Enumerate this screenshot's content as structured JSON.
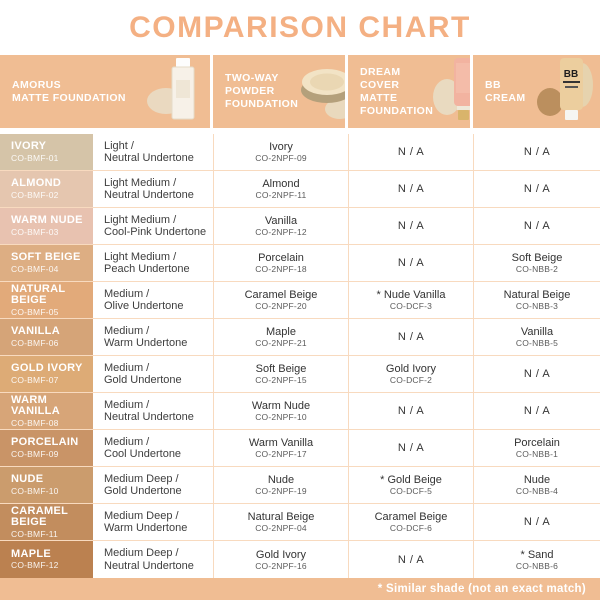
{
  "title": "COMPARISON CHART",
  "colors": {
    "accent": "#f4b083",
    "band": "#f0bd93",
    "grid_line": "#f8dabf",
    "dark_text": "#3e3e3e",
    "footnote_text": "#ffffff"
  },
  "chart_data": {
    "type": "table",
    "title": "COMPARISON CHART",
    "na_label": "N / A",
    "footnote": "* Similar shade (not an exact match)",
    "header_columns": [
      {
        "lines": [
          "AMORUS",
          "MATTE FOUNDATION"
        ],
        "icon": "foundation-bottle-icon"
      },
      {
        "lines": [
          "TWO-WAY",
          "POWDER",
          "FOUNDATION"
        ],
        "icon": "powder-compact-icon"
      },
      {
        "lines": [
          "DREAM COVER",
          "MATTE",
          "FOUNDATION"
        ],
        "icon": "cream-tube-icon"
      },
      {
        "lines": [
          "BB CREAM"
        ],
        "icon": "bb-cream-tube-icon"
      }
    ],
    "rows": [
      {
        "shade": "IVORY",
        "shade_code": "CO-BMF-01",
        "swatch_color": "#d5c4a8",
        "undertone": [
          "Light /",
          "Neutral Undertone"
        ],
        "two_way": {
          "name": "Ivory",
          "code": "CO-2NPF-09"
        },
        "dream_cover": "N / A",
        "bb_cream": "N / A"
      },
      {
        "shade": "ALMOND",
        "shade_code": "CO-BMF-02",
        "swatch_color": "#e5c6af",
        "undertone": [
          "Light Medium /",
          "Neutral Undertone"
        ],
        "two_way": {
          "name": "Almond",
          "code": "CO-2NPF-11"
        },
        "dream_cover": "N / A",
        "bb_cream": "N / A"
      },
      {
        "shade": "WARM NUDE",
        "shade_code": "CO-BMF-03",
        "swatch_color": "#e8c2b0",
        "undertone": [
          "Light Medium /",
          "Cool-Pink Undertone"
        ],
        "two_way": {
          "name": "Vanilla",
          "code": "CO-2NPF-12"
        },
        "dream_cover": "N / A",
        "bb_cream": "N / A"
      },
      {
        "shade": "SOFT BEIGE",
        "shade_code": "CO-BMF-04",
        "swatch_color": "#ddae83",
        "undertone": [
          "Light Medium /",
          "Peach Undertone"
        ],
        "two_way": {
          "name": "Porcelain",
          "code": "CO-2NPF-18"
        },
        "dream_cover": "N / A",
        "bb_cream": {
          "name": "Soft Beige",
          "code": "CO-NBB-2"
        }
      },
      {
        "shade": "NATURAL BEIGE",
        "shade_code": "CO-BMF-05",
        "swatch_color": "#e2aa7a",
        "undertone": [
          "Medium /",
          "Olive Undertone"
        ],
        "two_way": {
          "name": "Caramel Beige",
          "code": "CO-2NPF-20"
        },
        "dream_cover": {
          "name": "* Nude Vanilla",
          "code": "CO-DCF-3"
        },
        "bb_cream": {
          "name": "Natural Beige",
          "code": "CO-NBB-3"
        }
      },
      {
        "shade": "VANILLA",
        "shade_code": "CO-BMF-06",
        "swatch_color": "#d5a478",
        "undertone": [
          "Medium /",
          "Warm Undertone"
        ],
        "two_way": {
          "name": "Maple",
          "code": "CO-2NPF-21"
        },
        "dream_cover": "N / A",
        "bb_cream": {
          "name": "Vanilla",
          "code": "CO-NBB-5"
        }
      },
      {
        "shade": "GOLD IVORY",
        "shade_code": "CO-BMF-07",
        "swatch_color": "#ddab76",
        "undertone": [
          "Medium /",
          "Gold Undertone"
        ],
        "two_way": {
          "name": "Soft Beige",
          "code": "CO-2NPF-15"
        },
        "dream_cover": {
          "name": "Gold Ivory",
          "code": "CO-DCF-2"
        },
        "bb_cream": "N / A"
      },
      {
        "shade": "WARM VANILLA",
        "shade_code": "CO-BMF-08",
        "swatch_color": "#d7a578",
        "undertone": [
          "Medium /",
          "Neutral Undertone"
        ],
        "two_way": {
          "name": "Warm Nude",
          "code": "CO-2NPF-10"
        },
        "dream_cover": "N / A",
        "bb_cream": "N / A"
      },
      {
        "shade": "PORCELAIN",
        "shade_code": "CO-BMF-09",
        "swatch_color": "#c99467",
        "undertone": [
          "Medium /",
          "Cool Undertone"
        ],
        "two_way": {
          "name": "Warm Vanilla",
          "code": "CO-2NPF-17"
        },
        "dream_cover": "N / A",
        "bb_cream": {
          "name": "Porcelain",
          "code": "CO-NBB-1"
        }
      },
      {
        "shade": "NUDE",
        "shade_code": "CO-BMF-10",
        "swatch_color": "#cb9c6d",
        "undertone": [
          "Medium Deep /",
          "Gold Undertone"
        ],
        "two_way": {
          "name": "Nude",
          "code": "CO-2NPF-19"
        },
        "dream_cover": {
          "name": "* Gold Beige",
          "code": "CO-DCF-5"
        },
        "bb_cream": {
          "name": "Nude",
          "code": "CO-NBB-4"
        }
      },
      {
        "shade": "CARAMEL BEIGE",
        "shade_code": "CO-BMF-11",
        "swatch_color": "#c28d5e",
        "undertone": [
          "Medium Deep /",
          "Warm Undertone"
        ],
        "two_way": {
          "name": "Natural Beige",
          "code": "CO-2NPF-04"
        },
        "dream_cover": {
          "name": "Caramel Beige",
          "code": "CO-DCF-6"
        },
        "bb_cream": "N / A"
      },
      {
        "shade": "MAPLE",
        "shade_code": "CO-BMF-12",
        "swatch_color": "#bb8150",
        "undertone": [
          "Medium Deep /",
          "Neutral Undertone"
        ],
        "two_way": {
          "name": "Gold Ivory",
          "code": "CO-2NPF-16"
        },
        "dream_cover": "N / A",
        "bb_cream": {
          "name": "* Sand",
          "code": "CO-NBB-6"
        }
      }
    ]
  }
}
